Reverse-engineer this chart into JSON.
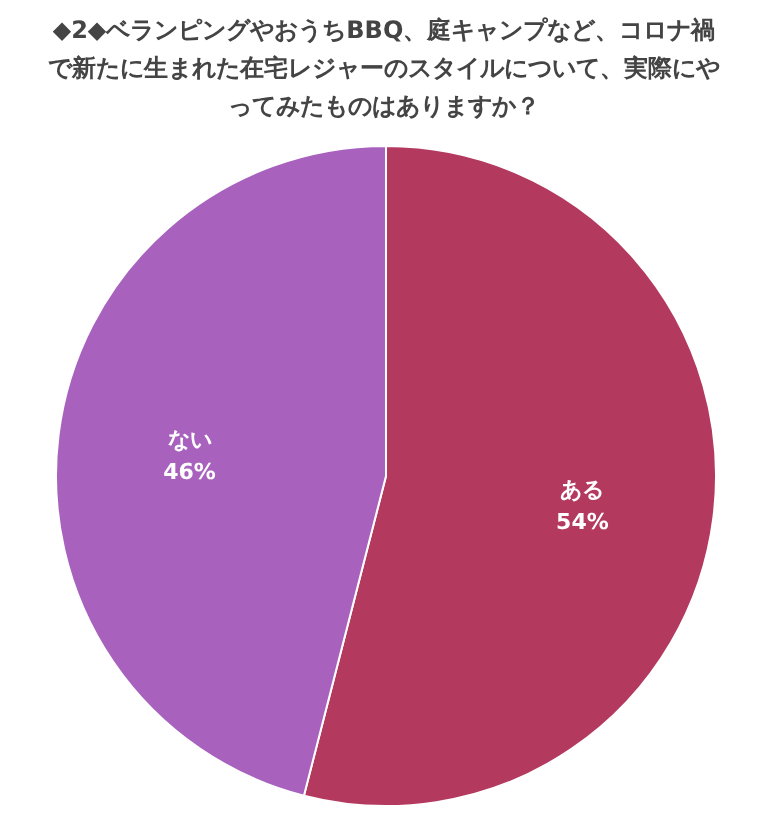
{
  "chart_data": {
    "type": "pie",
    "title": "◆2◆ベランピングやおうちBBQ、庭キャンプなど、コロナ禍で新たに生まれた在宅レジャーのスタイルについて、実際にやってみたものはありますか？",
    "categories": [
      "ある",
      "ない"
    ],
    "values": [
      54,
      46
    ],
    "colors": [
      "#b3395f",
      "#a862be"
    ],
    "value_labels": [
      "54%",
      "46%"
    ]
  }
}
